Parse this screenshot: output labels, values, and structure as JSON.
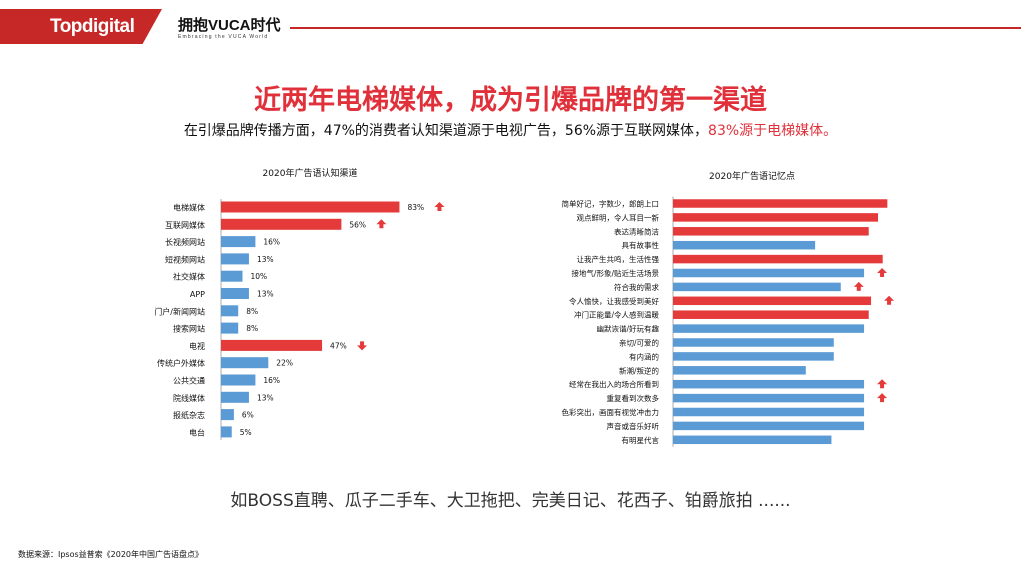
{
  "header": {
    "logo": "Topdigital",
    "slogan": "拥抱VUCA时代",
    "slogan_sub": "Embracing the VUCA World"
  },
  "title": "近两年电梯媒体，成为引爆品牌的第一渠道",
  "subtitle": {
    "part1": "在引爆品牌传播方面，47%的消费者认知渠道源于电视广告，56%源于互联网媒体，",
    "highlight": "83%源于电梯媒体。"
  },
  "brands": "如BOSS直聘、瓜子二手车、大卫拖把、完美日记、花西子、铂爵旅拍 ......",
  "source": "数据来源：Ipsos益普索《2020年中国广告语盘点》",
  "colors": {
    "red": "#e53a3a",
    "blue": "#5b9bd5",
    "accent": "#c62828"
  },
  "chart_data": [
    {
      "type": "bar",
      "orientation": "horizontal",
      "title": "2020年广告语认知渠道",
      "categories": [
        "电梯媒体",
        "互联网媒体",
        "长视频网站",
        "短视频网站",
        "社交媒体",
        "APP",
        "门户/新闻网站",
        "搜索网站",
        "电视",
        "传统户外媒体",
        "公共交通",
        "院线媒体",
        "报纸杂志",
        "电台"
      ],
      "values": [
        83,
        56,
        16,
        13,
        10,
        13,
        8,
        8,
        47,
        22,
        16,
        13,
        6,
        5
      ],
      "labels": [
        "83%",
        "56%",
        "16%",
        "13%",
        "10%",
        "13%",
        "8%",
        "8%",
        "47%",
        "22%",
        "16%",
        "13%",
        "6%",
        "5%"
      ],
      "highlight": [
        true,
        true,
        false,
        false,
        false,
        false,
        false,
        false,
        true,
        false,
        false,
        false,
        false,
        false
      ],
      "arrows": [
        "up",
        "up",
        null,
        null,
        null,
        null,
        null,
        null,
        "down",
        null,
        null,
        null,
        null,
        null
      ],
      "xlim": [
        0,
        100
      ]
    },
    {
      "type": "bar",
      "orientation": "horizontal",
      "title": "2020年广告语记忆点",
      "categories": [
        "简单好记，字数少，郎朗上口",
        "观点鲜明，令人耳目一新",
        "表达清晰简洁",
        "具有故事性",
        "让我产生共鸣，生活性强",
        "接地气/形象/贴近生活场景",
        "符合我的需求",
        "令人愉快，让我感受到美好",
        "冲门正能量/令人感到温暖",
        "幽默诙谐/好玩有趣",
        "亲切/可爱的",
        "有内涵的",
        "新潮/叛逆的",
        "经常在我出入的场合所看到",
        "重复看到次数多",
        "色彩突出，画面有视觉冲击力",
        "声音或音乐好听",
        "有明星代言"
      ],
      "values": [
        92,
        88,
        84,
        61,
        90,
        82,
        72,
        85,
        84,
        82,
        69,
        69,
        57,
        82,
        82,
        82,
        82,
        68
      ],
      "highlight": [
        true,
        true,
        true,
        false,
        true,
        false,
        false,
        true,
        true,
        false,
        false,
        false,
        false,
        false,
        false,
        false,
        false,
        false
      ],
      "arrows": [
        null,
        null,
        null,
        null,
        null,
        "up",
        "up",
        "up",
        null,
        null,
        null,
        null,
        null,
        "up",
        "up",
        null,
        null,
        null
      ],
      "xlim": [
        0,
        100
      ]
    }
  ]
}
